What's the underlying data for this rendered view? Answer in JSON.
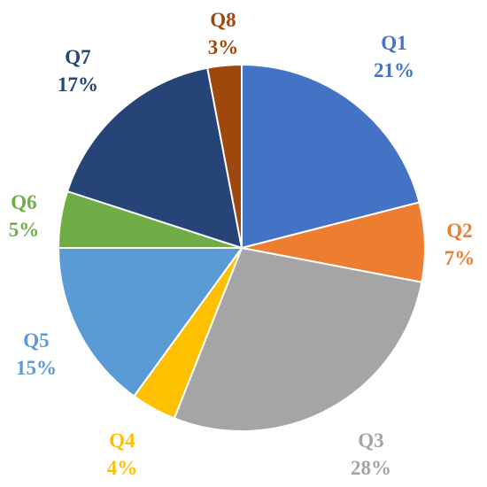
{
  "chart_data": {
    "type": "pie",
    "title": "",
    "start": "12 o'clock",
    "direction": "clockwise",
    "slices": [
      {
        "label": "Q1",
        "value": 21,
        "pct": "21%",
        "color": "#4472C4"
      },
      {
        "label": "Q2",
        "value": 7,
        "pct": "7%",
        "color": "#ED7D31"
      },
      {
        "label": "Q3",
        "value": 28,
        "pct": "28%",
        "color": "#A5A5A5"
      },
      {
        "label": "Q4",
        "value": 4,
        "pct": "4%",
        "color": "#FFC000"
      },
      {
        "label": "Q5",
        "value": 15,
        "pct": "15%",
        "color": "#5B9BD5"
      },
      {
        "label": "Q6",
        "value": 5,
        "pct": "5%",
        "color": "#70AD47"
      },
      {
        "label": "Q7",
        "value": 17,
        "pct": "17%",
        "color": "#264478"
      },
      {
        "label": "Q8",
        "value": 3,
        "pct": "3%",
        "color": "#9E480E"
      }
    ]
  }
}
